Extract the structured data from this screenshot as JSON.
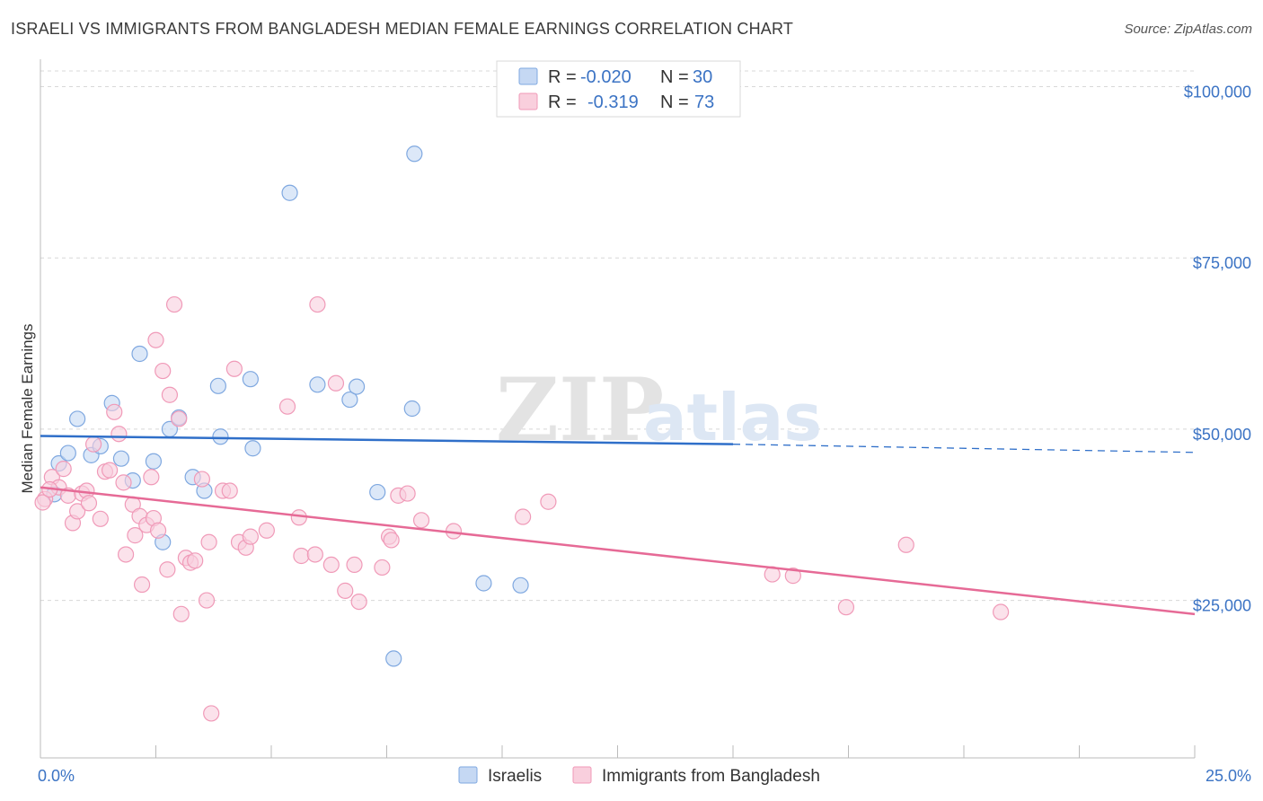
{
  "header": {
    "title": "ISRAELI VS IMMIGRANTS FROM BANGLADESH MEDIAN FEMALE EARNINGS CORRELATION CHART",
    "source": "Source: ZipAtlas.com"
  },
  "watermark": {
    "zip": "ZIP",
    "atlas": "atlas"
  },
  "chart_data": {
    "type": "scatter",
    "title": "ISRAELI VS IMMIGRANTS FROM BANGLADESH MEDIAN FEMALE EARNINGS CORRELATION CHART",
    "xlabel": "",
    "ylabel": "Median Female Earnings",
    "xlim": [
      0,
      25
    ],
    "ylim": [
      2000,
      104000
    ],
    "x_tick_labels": [
      "0.0%",
      "25.0%"
    ],
    "y_ticks": [
      25000,
      50000,
      75000,
      100000
    ],
    "y_tick_labels": [
      "$25,000",
      "$50,000",
      "$75,000",
      "$100,000"
    ],
    "grid": true,
    "legend_position": "top-center",
    "series": [
      {
        "name": "Israelis",
        "color": "#7fa8e0",
        "fill": "#c5d8f3",
        "line_color": "#2f6fc9",
        "r": "-0.020",
        "n": "30",
        "trend": {
          "x_start": 0,
          "y_start": 49000,
          "x_solid_end": 15,
          "y_solid_end": 47800,
          "x_end": 25,
          "y_end": 46600
        },
        "points": [
          [
            0.3,
            40500
          ],
          [
            0.4,
            45000
          ],
          [
            0.6,
            46500
          ],
          [
            0.8,
            51500
          ],
          [
            1.1,
            46200
          ],
          [
            1.3,
            47500
          ],
          [
            1.55,
            53800
          ],
          [
            1.75,
            45700
          ],
          [
            2.0,
            42500
          ],
          [
            2.15,
            61000
          ],
          [
            2.45,
            45300
          ],
          [
            2.65,
            33500
          ],
          [
            2.8,
            50000
          ],
          [
            3.0,
            51700
          ],
          [
            3.3,
            43000
          ],
          [
            3.55,
            41000
          ],
          [
            3.85,
            56300
          ],
          [
            3.9,
            48900
          ],
          [
            4.55,
            57300
          ],
          [
            4.6,
            47200
          ],
          [
            5.4,
            84500
          ],
          [
            6.0,
            56500
          ],
          [
            6.7,
            54300
          ],
          [
            6.85,
            56200
          ],
          [
            7.3,
            40800
          ],
          [
            7.65,
            16500
          ],
          [
            8.05,
            53000
          ],
          [
            8.1,
            90200
          ],
          [
            9.6,
            27500
          ],
          [
            10.4,
            27200
          ]
        ]
      },
      {
        "name": "Immigrants from Bangladesh",
        "color": "#f09ab8",
        "fill": "#f9cfdd",
        "line_color": "#e66a96",
        "r": "-0.319",
        "n": "73",
        "trend": {
          "x_start": 0,
          "y_start": 41500,
          "x_end": 25,
          "y_end": 23000
        },
        "points": [
          [
            0.1,
            39800
          ],
          [
            0.25,
            43000
          ],
          [
            0.4,
            41500
          ],
          [
            0.5,
            44200
          ],
          [
            0.6,
            40300
          ],
          [
            0.7,
            36300
          ],
          [
            0.8,
            38000
          ],
          [
            0.9,
            40600
          ],
          [
            1.0,
            41000
          ],
          [
            1.05,
            39200
          ],
          [
            1.15,
            47800
          ],
          [
            1.3,
            36900
          ],
          [
            1.4,
            43800
          ],
          [
            1.5,
            44000
          ],
          [
            1.6,
            52500
          ],
          [
            1.7,
            49300
          ],
          [
            1.8,
            42200
          ],
          [
            1.85,
            31700
          ],
          [
            2.0,
            39000
          ],
          [
            2.05,
            34500
          ],
          [
            2.15,
            37300
          ],
          [
            2.2,
            27300
          ],
          [
            2.3,
            36000
          ],
          [
            2.4,
            43000
          ],
          [
            2.45,
            37000
          ],
          [
            2.5,
            63000
          ],
          [
            2.55,
            35200
          ],
          [
            2.65,
            58500
          ],
          [
            2.75,
            29500
          ],
          [
            2.8,
            55000
          ],
          [
            2.9,
            68200
          ],
          [
            3.0,
            51500
          ],
          [
            3.05,
            23000
          ],
          [
            3.15,
            31200
          ],
          [
            3.25,
            30500
          ],
          [
            3.35,
            30800
          ],
          [
            3.5,
            42700
          ],
          [
            3.6,
            25000
          ],
          [
            3.65,
            33500
          ],
          [
            3.7,
            8500
          ],
          [
            3.95,
            41000
          ],
          [
            4.1,
            41000
          ],
          [
            4.2,
            58800
          ],
          [
            4.3,
            33500
          ],
          [
            4.45,
            32700
          ],
          [
            4.55,
            34300
          ],
          [
            4.9,
            35200
          ],
          [
            5.35,
            53300
          ],
          [
            5.6,
            37100
          ],
          [
            5.65,
            31500
          ],
          [
            5.95,
            31700
          ],
          [
            6.0,
            68200
          ],
          [
            6.3,
            30200
          ],
          [
            6.4,
            56700
          ],
          [
            6.6,
            26400
          ],
          [
            6.8,
            30200
          ],
          [
            6.9,
            24800
          ],
          [
            7.4,
            29800
          ],
          [
            7.55,
            34300
          ],
          [
            7.6,
            33800
          ],
          [
            7.75,
            40300
          ],
          [
            7.95,
            40600
          ],
          [
            8.25,
            36700
          ],
          [
            8.95,
            35100
          ],
          [
            10.45,
            37200
          ],
          [
            11.0,
            39400
          ],
          [
            15.85,
            28800
          ],
          [
            16.3,
            28600
          ],
          [
            17.45,
            24000
          ],
          [
            18.75,
            33100
          ],
          [
            20.8,
            23300
          ],
          [
            0.05,
            39300
          ],
          [
            0.2,
            41200
          ]
        ]
      }
    ]
  },
  "bottom_legend": {
    "items": [
      {
        "label": "Israelis"
      },
      {
        "label": "Immigrants from Bangladesh"
      }
    ]
  }
}
